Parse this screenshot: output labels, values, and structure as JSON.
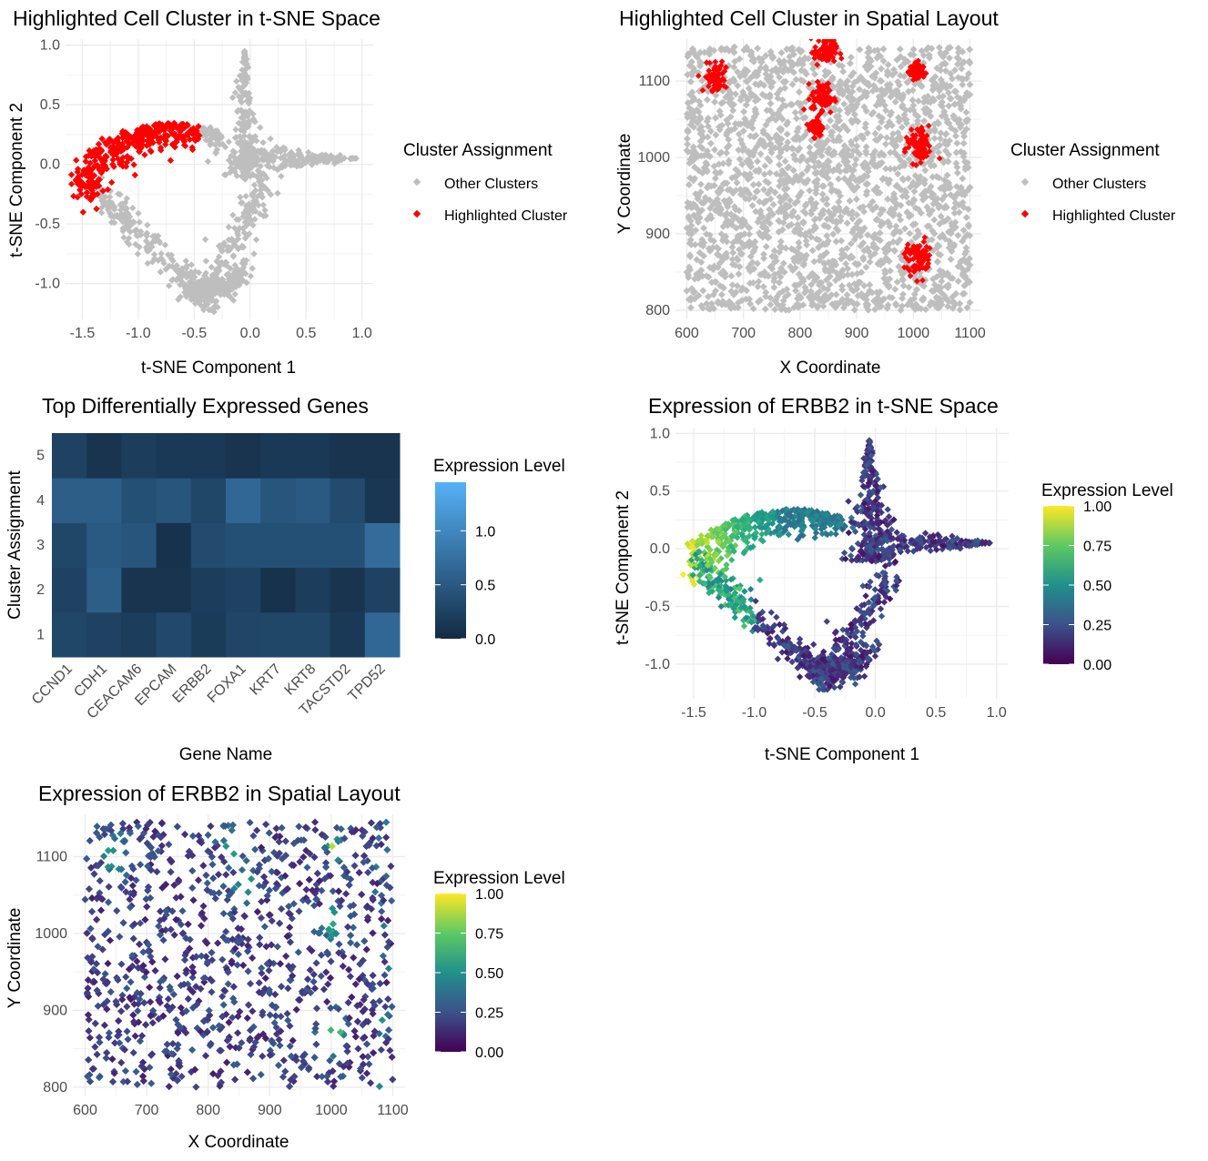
{
  "chart_data": [
    {
      "type": "scatter",
      "title": "Highlighted Cell Cluster in t-SNE Space",
      "xlabel": "t-SNE Component 1",
      "ylabel": "t-SNE Component 2",
      "xlim": [
        -1.65,
        1.1
      ],
      "ylim": [
        -1.3,
        1.05
      ],
      "xticks": [
        -1.5,
        -1.0,
        -0.5,
        0.0,
        0.5,
        1.0
      ],
      "xticklabels": [
        "-1.5",
        "-1.0",
        "-0.5",
        "0.0",
        "0.5",
        "1.0"
      ],
      "yticks": [
        -1.0,
        -0.5,
        0.0,
        0.5,
        1.0
      ],
      "yticklabels": [
        "-1.0",
        "-0.5",
        "0.0",
        "0.5",
        "1.0"
      ],
      "grid": true,
      "legend": {
        "title": "Cluster Assignment",
        "position": "right",
        "entries": [
          {
            "label": "Other Clusters",
            "color": "#bebebe"
          },
          {
            "label": "Highlighted Cluster",
            "color": "#ff0000"
          }
        ]
      }
    },
    {
      "type": "scatter",
      "title": "Highlighted Cell Cluster in Spatial Layout",
      "xlabel": "X Coordinate",
      "ylabel": "Y Coordinate",
      "xlim": [
        580,
        1120
      ],
      "ylim": [
        788,
        1155
      ],
      "xticks": [
        600,
        700,
        800,
        900,
        1000,
        1100
      ],
      "xticklabels": [
        "600",
        "700",
        "800",
        "900",
        "1000",
        "1100"
      ],
      "yticks": [
        800,
        900,
        1000,
        1100
      ],
      "yticklabels": [
        "800",
        "900",
        "1000",
        "1100"
      ],
      "grid": true,
      "legend": {
        "title": "Cluster Assignment",
        "position": "right",
        "entries": [
          {
            "label": "Other Clusters",
            "color": "#bebebe"
          },
          {
            "label": "Highlighted Cluster",
            "color": "#ff0000"
          }
        ]
      }
    },
    {
      "type": "heatmap",
      "title": "Top Differentially Expressed Genes",
      "xlabel": "Gene Name",
      "ylabel": "Cluster Assignment",
      "x": [
        "CCND1",
        "CDH1",
        "CEACAM6",
        "EPCAM",
        "ERBB2",
        "FOXA1",
        "KRT7",
        "KRT8",
        "TACSTD2",
        "TPD52"
      ],
      "y": [
        "1",
        "2",
        "3",
        "4",
        "5"
      ],
      "values": [
        [
          0.3,
          0.25,
          0.2,
          0.32,
          0.18,
          0.28,
          0.3,
          0.3,
          0.15,
          0.65
        ],
        [
          0.25,
          0.55,
          0.1,
          0.1,
          0.2,
          0.25,
          0.08,
          0.2,
          0.1,
          0.25
        ],
        [
          0.3,
          0.5,
          0.45,
          0.08,
          0.35,
          0.4,
          0.4,
          0.4,
          0.4,
          0.7
        ],
        [
          0.55,
          0.55,
          0.4,
          0.45,
          0.3,
          0.65,
          0.45,
          0.5,
          0.35,
          0.12
        ],
        [
          0.25,
          0.1,
          0.2,
          0.15,
          0.15,
          0.1,
          0.15,
          0.15,
          0.1,
          0.1
        ]
      ],
      "colorbar": {
        "title": "Expression Level",
        "range": [
          0,
          1.45
        ],
        "ticks": [
          0.0,
          0.5,
          1.0
        ],
        "ticklabels": [
          "0.0",
          "0.5",
          "1.0"
        ],
        "colors": [
          "#132b43",
          "#56b1f7"
        ]
      }
    },
    {
      "type": "scatter",
      "title": "Expression of ERBB2 in t-SNE Space",
      "xlabel": "t-SNE Component 1",
      "ylabel": "t-SNE Component 2",
      "xlim": [
        -1.65,
        1.1
      ],
      "ylim": [
        -1.3,
        1.05
      ],
      "xticks": [
        -1.5,
        -1.0,
        -0.5,
        0.0,
        0.5,
        1.0
      ],
      "xticklabels": [
        "-1.5",
        "-1.0",
        "-0.5",
        "0.0",
        "0.5",
        "1.0"
      ],
      "yticks": [
        -1.0,
        -0.5,
        0.0,
        0.5,
        1.0
      ],
      "yticklabels": [
        "-1.0",
        "-0.5",
        "0.0",
        "0.5",
        "1.0"
      ],
      "grid": true,
      "colorbar": {
        "title": "Expression Level",
        "range": [
          0,
          1.0
        ],
        "ticks": [
          0.0,
          0.25,
          0.5,
          0.75,
          1.0
        ],
        "ticklabels": [
          "0.00",
          "0.25",
          "0.50",
          "0.75",
          "1.00"
        ],
        "colormap": "viridis"
      }
    },
    {
      "type": "scatter",
      "title": "Expression of ERBB2 in Spatial Layout",
      "xlabel": "X Coordinate",
      "ylabel": "Y Coordinate",
      "xlim": [
        580,
        1120
      ],
      "ylim": [
        788,
        1155
      ],
      "xticks": [
        600,
        700,
        800,
        900,
        1000,
        1100
      ],
      "xticklabels": [
        "600",
        "700",
        "800",
        "900",
        "1000",
        "1100"
      ],
      "yticks": [
        800,
        900,
        1000,
        1100
      ],
      "yticklabels": [
        "800",
        "900",
        "1000",
        "1100"
      ],
      "grid": true,
      "colorbar": {
        "title": "Expression Level",
        "range": [
          0,
          1.0
        ],
        "ticks": [
          0.0,
          0.25,
          0.5,
          0.75,
          1.0
        ],
        "ticklabels": [
          "0.00",
          "0.25",
          "0.50",
          "0.75",
          "1.00"
        ],
        "colormap": "viridis"
      }
    }
  ]
}
